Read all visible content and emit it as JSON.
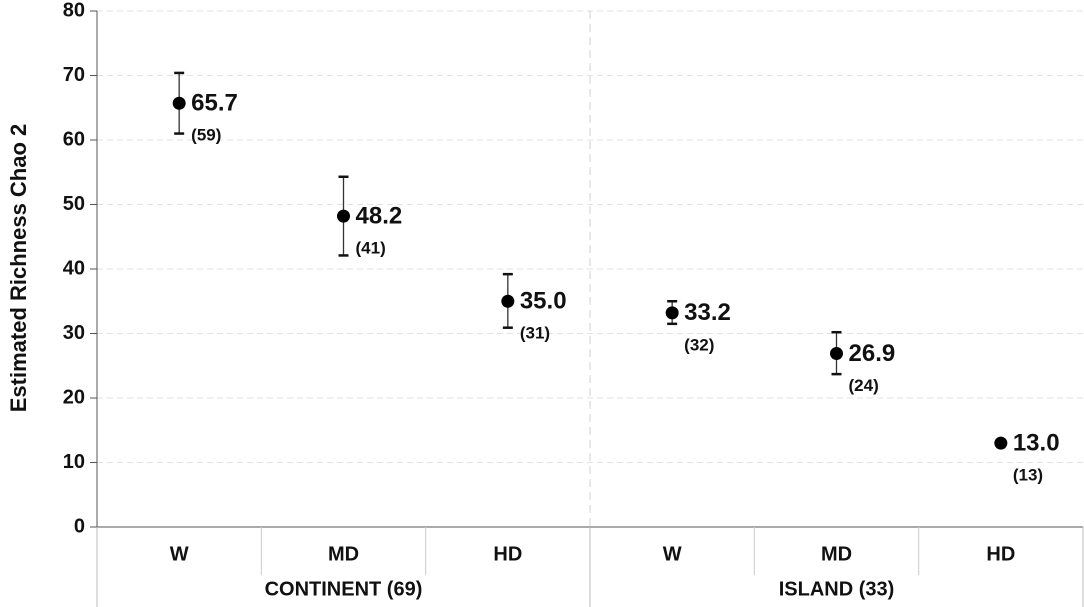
{
  "chart_data": {
    "type": "dot",
    "y_label": "Estimated Richness Chao 2",
    "color": "#000000",
    "ylim": [
      0,
      80
    ],
    "yticks": [
      0,
      10,
      20,
      30,
      40,
      50,
      60,
      70,
      80
    ],
    "grid": true,
    "groups": [
      {
        "name": "CONTINENT (69)",
        "categories": [
          "W",
          "MD",
          "HD"
        ],
        "values": [
          65.7,
          48.2,
          35.0
        ],
        "value_labels": [
          "65.7",
          "48.2",
          "35.0"
        ],
        "ci_lower": [
          61.0,
          42.1,
          30.9
        ],
        "ci_upper": [
          70.4,
          54.3,
          39.2
        ],
        "count_labels": [
          "(59)",
          "(41)",
          "(31)"
        ]
      },
      {
        "name": "ISLAND (33)",
        "categories": [
          "W",
          "MD",
          "HD"
        ],
        "values": [
          33.2,
          26.9,
          13.0
        ],
        "value_labels": [
          "33.2",
          "26.9",
          "13.0"
        ],
        "ci_lower": [
          31.5,
          23.7,
          null
        ],
        "ci_upper": [
          35.0,
          30.2,
          null
        ],
        "count_labels": [
          "(32)",
          "(24)",
          "(13)"
        ]
      }
    ]
  }
}
